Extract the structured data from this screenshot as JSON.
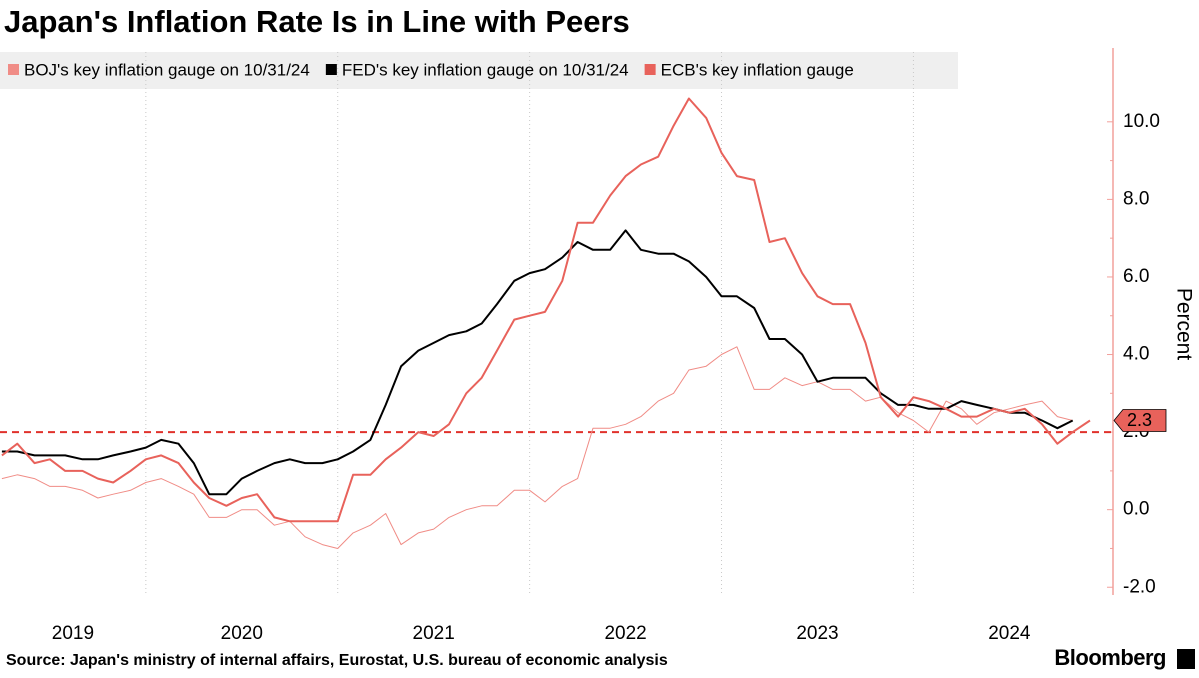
{
  "chart_data": {
    "type": "line",
    "title": "Japan's Inflation Rate Is in Line with Peers",
    "y_label": "Percent",
    "source": "Source: Japan's ministry of internal affairs, Eurostat, U.S. bureau of economic analysis",
    "brand": "Bloomberg",
    "x": [
      2019.25,
      2019.33,
      2019.42,
      2019.5,
      2019.58,
      2019.67,
      2019.75,
      2019.83,
      2019.92,
      2020.0,
      2020.08,
      2020.17,
      2020.25,
      2020.33,
      2020.42,
      2020.5,
      2020.58,
      2020.67,
      2020.75,
      2020.83,
      2020.92,
      2021.0,
      2021.08,
      2021.17,
      2021.25,
      2021.33,
      2021.42,
      2021.5,
      2021.58,
      2021.67,
      2021.75,
      2021.83,
      2021.92,
      2022.0,
      2022.08,
      2022.17,
      2022.25,
      2022.33,
      2022.42,
      2022.5,
      2022.58,
      2022.67,
      2022.75,
      2022.83,
      2022.92,
      2023.0,
      2023.08,
      2023.17,
      2023.25,
      2023.33,
      2023.42,
      2023.5,
      2023.58,
      2023.67,
      2023.75,
      2023.83,
      2023.92,
      2024.0,
      2024.08,
      2024.17,
      2024.25,
      2024.33,
      2024.42,
      2024.5,
      2024.58,
      2024.67,
      2024.75,
      2024.83,
      2024.92
    ],
    "series": [
      {
        "name": "BOJ's key inflation gauge on 10/31/24",
        "color": "#f08c86",
        "width": 1,
        "values": [
          0.8,
          0.9,
          0.8,
          0.6,
          0.6,
          0.5,
          0.3,
          0.4,
          0.5,
          0.7,
          0.8,
          0.6,
          0.4,
          -0.2,
          -0.2,
          0.0,
          0.0,
          -0.4,
          -0.3,
          -0.7,
          -0.9,
          -1.0,
          -0.6,
          -0.4,
          -0.1,
          -0.9,
          -0.6,
          -0.5,
          -0.2,
          0.0,
          0.1,
          0.1,
          0.5,
          0.5,
          0.2,
          0.6,
          0.8,
          2.1,
          2.1,
          2.2,
          2.4,
          2.8,
          3.0,
          3.6,
          3.7,
          4.0,
          4.2,
          3.1,
          3.1,
          3.4,
          3.2,
          3.3,
          3.1,
          3.1,
          2.8,
          2.9,
          2.5,
          2.3,
          2.0,
          2.8,
          2.6,
          2.2,
          2.5,
          2.6,
          2.7,
          2.8,
          2.4,
          2.3,
          null
        ]
      },
      {
        "name": "FED's key inflation gauge on 10/31/24",
        "color": "#000000",
        "width": 2,
        "values": [
          1.5,
          1.5,
          1.4,
          1.4,
          1.4,
          1.3,
          1.3,
          1.4,
          1.5,
          1.6,
          1.8,
          1.7,
          1.2,
          0.4,
          0.4,
          0.8,
          1.0,
          1.2,
          1.3,
          1.2,
          1.2,
          1.3,
          1.5,
          1.8,
          2.7,
          3.7,
          4.1,
          4.3,
          4.5,
          4.6,
          4.8,
          5.3,
          5.9,
          6.1,
          6.2,
          6.5,
          6.9,
          6.7,
          6.7,
          7.2,
          6.7,
          6.6,
          6.6,
          6.4,
          6.0,
          5.5,
          5.5,
          5.2,
          4.4,
          4.4,
          4.0,
          3.3,
          3.4,
          3.4,
          3.4,
          3.0,
          2.7,
          2.7,
          2.6,
          2.6,
          2.8,
          2.7,
          2.6,
          2.5,
          2.5,
          2.3,
          2.1,
          2.3,
          null
        ]
      },
      {
        "name": "ECB's key inflation gauge",
        "color": "#e8625b",
        "width": 2,
        "values": [
          1.4,
          1.7,
          1.2,
          1.3,
          1.0,
          1.0,
          0.8,
          0.7,
          1.0,
          1.3,
          1.4,
          1.2,
          0.7,
          0.3,
          0.1,
          0.3,
          0.4,
          -0.2,
          -0.3,
          -0.3,
          -0.3,
          -0.3,
          0.9,
          0.9,
          1.3,
          1.6,
          2.0,
          1.9,
          2.2,
          3.0,
          3.4,
          4.1,
          4.9,
          5.0,
          5.1,
          5.9,
          7.4,
          7.4,
          8.1,
          8.6,
          8.9,
          9.1,
          9.9,
          10.6,
          10.1,
          9.2,
          8.6,
          8.5,
          6.9,
          7.0,
          6.1,
          5.5,
          5.3,
          5.3,
          4.3,
          2.9,
          2.4,
          2.9,
          2.8,
          2.6,
          2.4,
          2.4,
          2.6,
          2.5,
          2.6,
          2.2,
          1.7,
          2.0,
          2.3
        ]
      }
    ],
    "last_value_series": 2,
    "reference_line": 2,
    "reference_color": "#e0312b",
    "xlim": [
      2019.24,
      2025.04
    ],
    "xticks": [
      2019,
      2020,
      2021,
      2022,
      2023,
      2024
    ],
    "ylim": [
      -2.2,
      11.8
    ],
    "yticks": [
      {
        "value": -2,
        "label": "-2.0"
      },
      {
        "value": 0,
        "label": "0.0"
      },
      {
        "value": 2,
        "label": "2.0"
      },
      {
        "value": 4,
        "label": "4.0"
      },
      {
        "value": 6,
        "label": "6.0"
      },
      {
        "value": 8,
        "label": "8.0"
      },
      {
        "value": 10,
        "label": "10.0"
      }
    ],
    "y_axis_side": "right",
    "x_grid": true,
    "axis_color": "#f2a09b"
  }
}
